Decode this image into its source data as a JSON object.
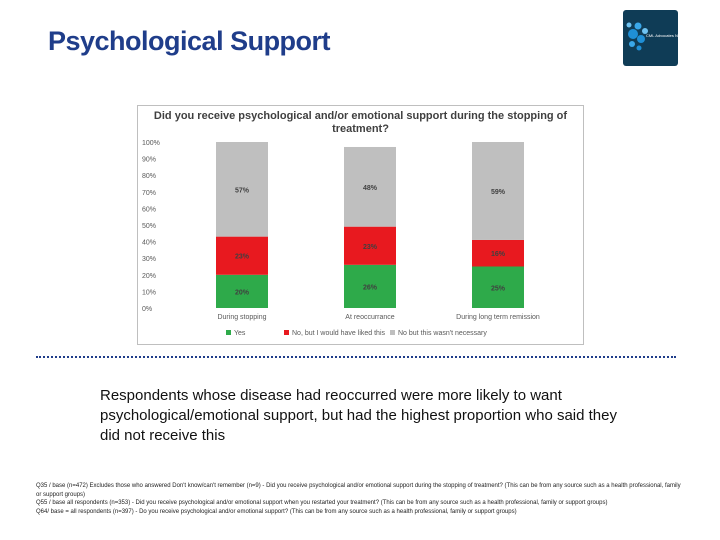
{
  "slide": {
    "title": "Psychological Support",
    "logo_text": "CML Advocates Network",
    "summary": "Respondents whose disease had reoccurred were more likely to want psychological/emotional support, but had the highest proportion who said they did not receive this",
    "footnotes": [
      "Q35 / base (n=472) Excludes those who answered Don't know/can't remember (n=9) - Did you receive psychological and/or emotional support during the stopping of treatment? (This can be from any source such as a health professional, family or support groups)",
      "Q55 / base all respondents (n=353) - Did you receive psychological and/or emotional support when you restarted your treatment? (This can be from any source such as a health professional, family or support groups)",
      "Q64/ base = all respondents (n=397) - Do you receive psychological and/or emotional support? (This can be from any source such as a health professional, family or support groups)"
    ]
  },
  "colors": {
    "yes": "#2eaa4a",
    "no_would_have_liked": "#e8191f",
    "no_not_necessary": "#bfbfbf",
    "title": "#1f3d8a"
  },
  "chart_data": {
    "type": "bar",
    "stacked": true,
    "title": "Did you receive psychological and/or emotional support during the stopping of treatment?",
    "categories": [
      "During stopping",
      "At reoccurrance",
      "During long term remission"
    ],
    "series": [
      {
        "name": "Yes",
        "values": [
          20,
          26,
          25
        ],
        "labels": [
          "20%",
          "26%",
          "25%"
        ]
      },
      {
        "name": "No, but I would have liked this",
        "values": [
          23,
          23,
          16
        ],
        "labels": [
          "23%",
          "23%",
          "16%"
        ]
      },
      {
        "name": "No but this wasn't necessary",
        "values": [
          57,
          48,
          59
        ],
        "labels": [
          "57%",
          "48%",
          "59%"
        ]
      }
    ],
    "yticks": [
      "0%",
      "10%",
      "20%",
      "30%",
      "40%",
      "50%",
      "60%",
      "70%",
      "80%",
      "90%",
      "100%"
    ],
    "ylim": [
      0,
      100
    ],
    "grid": false,
    "legend": "bottom"
  }
}
